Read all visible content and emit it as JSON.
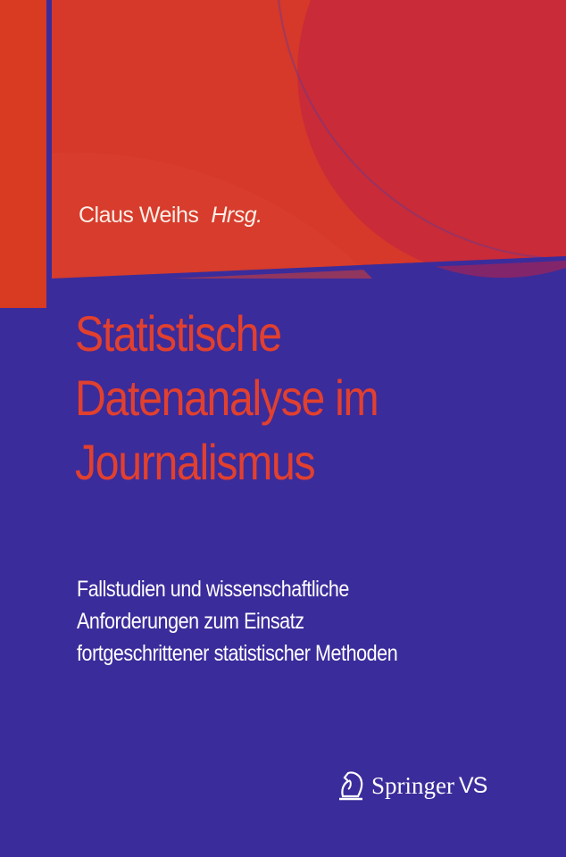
{
  "cover": {
    "author": "Claus Weihs",
    "editor_label": "Hrsg.",
    "title_lines": [
      "Statistische",
      "Datenanalyse im",
      "Journalismus"
    ],
    "subtitle_lines": [
      "Fallstudien und wissenschaftliche",
      "Anforderungen zum Einsatz",
      "fortgeschrittener statistischer Methoden"
    ],
    "publisher": {
      "name": "Springer",
      "imprint": "VS",
      "icon": "knight-horse-icon"
    },
    "colors": {
      "red": "#d83a26",
      "blue": "#3b2c9b",
      "title_red": "#e2402e"
    }
  }
}
